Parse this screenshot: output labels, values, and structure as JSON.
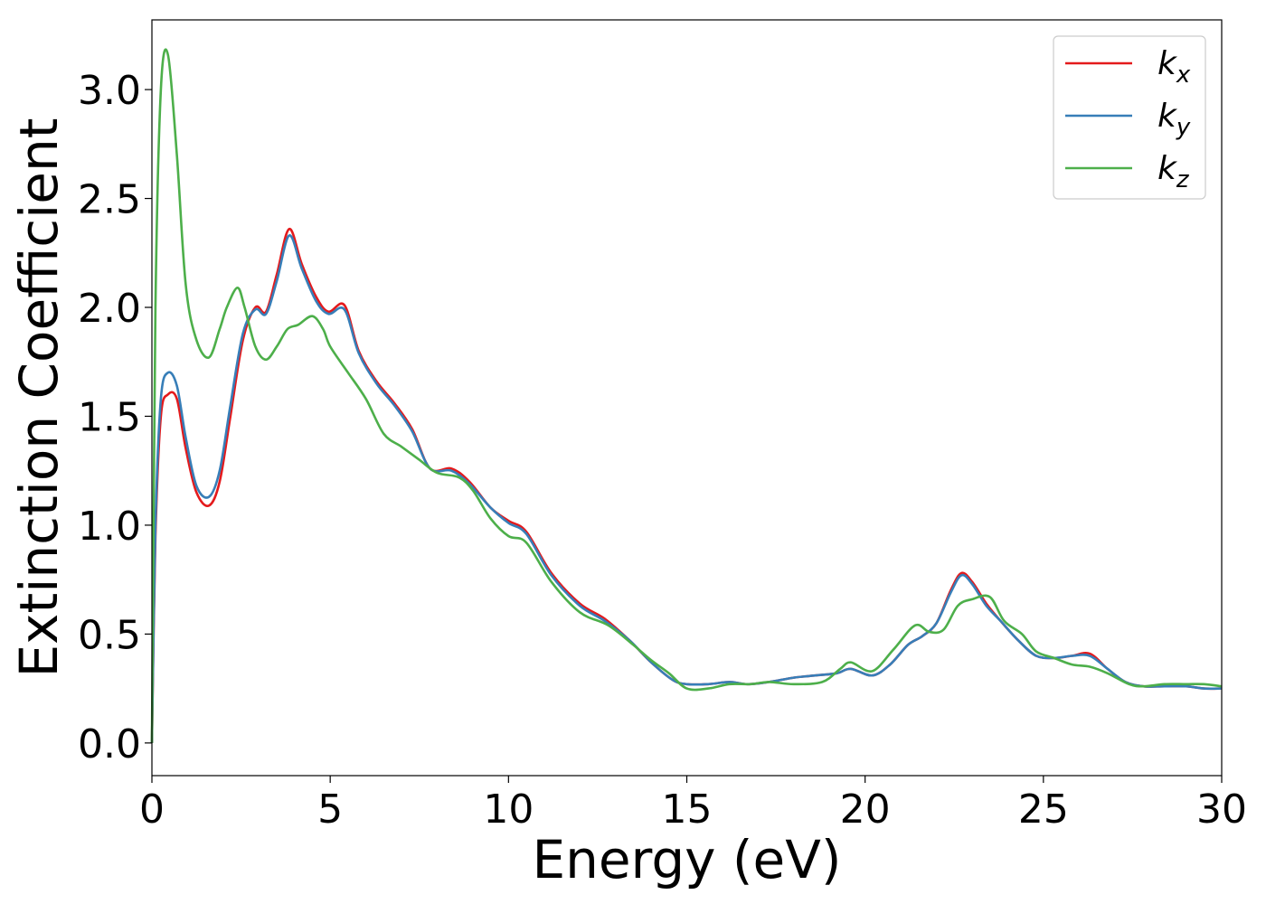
{
  "chart_data": {
    "type": "line",
    "title": "",
    "xlabel": "Energy (eV)",
    "ylabel": "Extinction Coefficient",
    "xlim": [
      0,
      30
    ],
    "ylim": [
      -0.15,
      3.32
    ],
    "xticks": [
      0,
      5,
      10,
      15,
      20,
      25,
      30
    ],
    "xtick_labels": [
      "0",
      "5",
      "10",
      "15",
      "20",
      "25",
      "30"
    ],
    "yticks": [
      0.0,
      0.5,
      1.0,
      1.5,
      2.0,
      2.5,
      3.0
    ],
    "ytick_labels": [
      "0.0",
      "0.5",
      "1.0",
      "1.5",
      "2.0",
      "2.5",
      "3.0"
    ],
    "grid": false,
    "legend_position": "top-right",
    "series": [
      {
        "name": "k",
        "subscript": "x",
        "color": "#e41a1c",
        "x": [
          0,
          0.1,
          0.25,
          0.45,
          0.7,
          0.95,
          1.25,
          1.6,
          1.9,
          2.2,
          2.55,
          2.9,
          3.2,
          3.5,
          3.85,
          4.2,
          4.6,
          4.95,
          5.4,
          5.8,
          6.3,
          6.8,
          7.3,
          7.8,
          8.4,
          8.9,
          9.5,
          10.0,
          10.5,
          11.2,
          12.0,
          12.7,
          13.4,
          14.0,
          14.6,
          15.0,
          15.6,
          16.2,
          16.7,
          17.3,
          18.0,
          18.6,
          19.2,
          19.6,
          20.2,
          20.7,
          21.2,
          21.6,
          22.0,
          22.4,
          22.7,
          23.0,
          23.4,
          23.8,
          24.3,
          24.8,
          25.3,
          25.8,
          26.3,
          26.8,
          27.3,
          27.8,
          28.4,
          29.0,
          29.5,
          30.0
        ],
        "y": [
          0.0,
          0.95,
          1.5,
          1.6,
          1.58,
          1.35,
          1.15,
          1.09,
          1.2,
          1.5,
          1.85,
          2.0,
          1.98,
          2.15,
          2.36,
          2.2,
          2.05,
          1.98,
          2.01,
          1.8,
          1.66,
          1.56,
          1.44,
          1.26,
          1.26,
          1.2,
          1.08,
          1.02,
          0.97,
          0.78,
          0.64,
          0.57,
          0.47,
          0.37,
          0.29,
          0.27,
          0.27,
          0.28,
          0.27,
          0.28,
          0.3,
          0.31,
          0.32,
          0.34,
          0.31,
          0.36,
          0.45,
          0.49,
          0.55,
          0.7,
          0.78,
          0.74,
          0.64,
          0.56,
          0.47,
          0.4,
          0.39,
          0.4,
          0.41,
          0.34,
          0.28,
          0.26,
          0.26,
          0.26,
          0.25,
          0.25
        ]
      },
      {
        "name": "k",
        "subscript": "y",
        "color": "#377eb8",
        "x": [
          0,
          0.1,
          0.25,
          0.45,
          0.7,
          0.95,
          1.25,
          1.6,
          1.9,
          2.2,
          2.55,
          2.9,
          3.2,
          3.5,
          3.85,
          4.2,
          4.6,
          4.95,
          5.4,
          5.8,
          6.3,
          6.8,
          7.3,
          7.8,
          8.4,
          8.9,
          9.5,
          10.0,
          10.5,
          11.2,
          12.0,
          12.7,
          13.4,
          14.0,
          14.6,
          15.0,
          15.6,
          16.2,
          16.7,
          17.3,
          18.0,
          18.6,
          19.2,
          19.6,
          20.2,
          20.7,
          21.2,
          21.6,
          22.0,
          22.4,
          22.7,
          23.0,
          23.4,
          23.8,
          24.3,
          24.8,
          25.3,
          25.8,
          26.3,
          26.8,
          27.3,
          27.8,
          28.4,
          29.0,
          29.5,
          30.0
        ],
        "y": [
          0.0,
          1.0,
          1.58,
          1.7,
          1.64,
          1.4,
          1.18,
          1.13,
          1.25,
          1.55,
          1.88,
          1.99,
          1.97,
          2.12,
          2.33,
          2.18,
          2.03,
          1.97,
          1.99,
          1.79,
          1.65,
          1.55,
          1.43,
          1.26,
          1.25,
          1.19,
          1.08,
          1.01,
          0.96,
          0.77,
          0.63,
          0.56,
          0.47,
          0.37,
          0.29,
          0.27,
          0.27,
          0.28,
          0.27,
          0.28,
          0.3,
          0.31,
          0.32,
          0.34,
          0.31,
          0.36,
          0.45,
          0.49,
          0.55,
          0.69,
          0.77,
          0.73,
          0.63,
          0.56,
          0.47,
          0.4,
          0.39,
          0.4,
          0.4,
          0.34,
          0.28,
          0.26,
          0.26,
          0.26,
          0.25,
          0.25
        ]
      },
      {
        "name": "k",
        "subscript": "z",
        "color": "#4daf4a",
        "x": [
          0,
          0.1,
          0.25,
          0.45,
          0.7,
          0.95,
          1.25,
          1.6,
          1.9,
          2.1,
          2.4,
          2.6,
          2.9,
          3.2,
          3.5,
          3.8,
          4.1,
          4.5,
          4.8,
          5.0,
          5.5,
          6.0,
          6.5,
          7.0,
          7.5,
          8.0,
          8.6,
          9.0,
          9.5,
          10.0,
          10.5,
          11.2,
          12.0,
          12.8,
          13.5,
          14.0,
          14.5,
          15.0,
          15.6,
          16.2,
          16.8,
          17.3,
          18.0,
          18.8,
          19.3,
          19.6,
          20.2,
          20.8,
          21.4,
          21.8,
          22.2,
          22.6,
          23.0,
          23.5,
          23.9,
          24.4,
          24.8,
          25.3,
          25.8,
          26.3,
          26.8,
          27.4,
          27.8,
          28.4,
          29.0,
          29.5,
          30.0
        ],
        "y": [
          0.0,
          2.0,
          3.0,
          3.16,
          2.7,
          2.1,
          1.85,
          1.77,
          1.9,
          2.0,
          2.09,
          2.0,
          1.82,
          1.76,
          1.82,
          1.9,
          1.92,
          1.96,
          1.9,
          1.82,
          1.7,
          1.58,
          1.42,
          1.36,
          1.3,
          1.24,
          1.22,
          1.16,
          1.03,
          0.95,
          0.92,
          0.74,
          0.6,
          0.54,
          0.45,
          0.38,
          0.32,
          0.25,
          0.25,
          0.27,
          0.27,
          0.28,
          0.27,
          0.28,
          0.34,
          0.37,
          0.33,
          0.43,
          0.54,
          0.51,
          0.52,
          0.63,
          0.66,
          0.67,
          0.56,
          0.5,
          0.42,
          0.39,
          0.36,
          0.35,
          0.32,
          0.27,
          0.26,
          0.27,
          0.27,
          0.27,
          0.26
        ]
      }
    ]
  }
}
